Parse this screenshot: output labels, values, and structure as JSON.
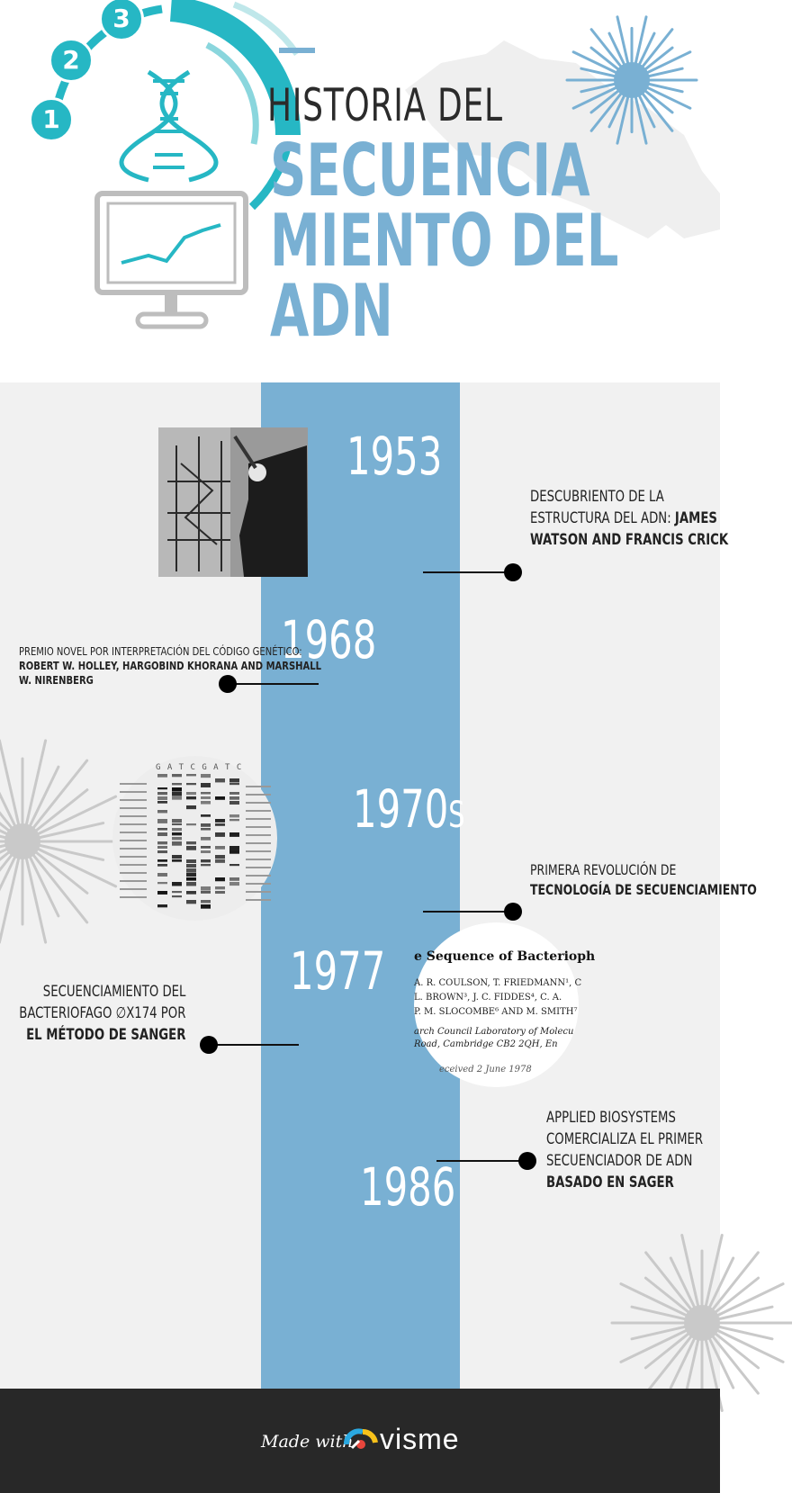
{
  "header": {
    "title_line1": "HISTORIA DEL",
    "title_line2": "SECUENCIA",
    "title_line3": "MIENTO DEL",
    "title_line4": "ADN",
    "steps": [
      "1",
      "2",
      "3"
    ]
  },
  "events": [
    {
      "year": "1953",
      "text": "DESCUBRIENTO DE LA",
      "text2": "ESTRUCTURA DEL ADN: ",
      "bold2": "JAMES",
      "bold3": "WATSON AND FRANCIS CRICK"
    },
    {
      "year": "1968",
      "text": "PREMIO NOVEL POR INTERPRETACIÓN DEL CÓDIGO GENÉTICO:",
      "bold2": "ROBERT W. HOLLEY, HARGOBIND KHORANA AND MARSHALL",
      "bold3": "W. NIRENBERG"
    },
    {
      "year": "1970",
      "year_suffix": "S",
      "text": "PRIMERA REVOLUCIÓN DE",
      "bold2": "TECNOLOGÍA DE SECUENCIAMIENTO"
    },
    {
      "year": "1977",
      "text": "SECUENCIAMIENTO DEL",
      "text2": "BACTERIOFAGO ∅X174 POR",
      "bold3": "EL MÉTODO DE SANGER"
    },
    {
      "year": "1986",
      "text": "APPLIED BIOSYSTEMS",
      "text2": "COMERCIALIZA EL PRIMER",
      "text3": "SECUENCIADOR DE ADN",
      "bold4": "BASADO EN SAGER"
    }
  ],
  "paper": {
    "title": "e Sequence of Bacterioph",
    "authors1": "A. R. COULSON, T. FRIEDMANN¹, C",
    "authors2": "L. BROWN³, J. C. FIDDES⁴, C. A.",
    "authors3": "P. M. SLOCOMBE⁶ AND M. SMITH⁷",
    "affil1": "arch Council Laboratory of Molecu",
    "affil2": "Road, Cambridge CB2 2QH, En",
    "received": "eceived 2 June 1978"
  },
  "gel": {
    "header": "G A T C G A T C"
  },
  "footer": {
    "made_with": "Made with",
    "brand": "visme"
  },
  "colors": {
    "accent": "#79b0d3",
    "teal": "#26b7c4",
    "dark": "#282828",
    "background": "#f1f1f1"
  }
}
